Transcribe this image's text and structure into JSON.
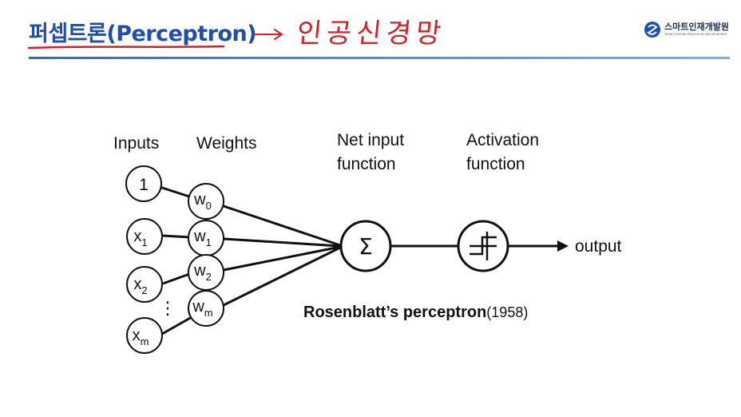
{
  "header": {
    "title": "퍼셉트론(Perceptron)",
    "annotation_arrow": "→",
    "annotation_text": "인공신경망"
  },
  "logo": {
    "name": "스마트인재개발원",
    "subtitle": "Smart Human Resources Development"
  },
  "diagram": {
    "labels": {
      "inputs": "Inputs",
      "weights": "Weights",
      "net_input_line1": "Net input",
      "net_input_line2": "function",
      "activation_line1": "Activation",
      "activation_line2": "function",
      "output": "output",
      "dots": "⋮",
      "sum_symbol": "Σ"
    },
    "inputs": [
      {
        "base": "1",
        "sub": ""
      },
      {
        "base": "x",
        "sub": "1"
      },
      {
        "base": "x",
        "sub": "2"
      },
      {
        "base": "x",
        "sub": "m"
      }
    ],
    "weights": [
      {
        "base": "w",
        "sub": "0"
      },
      {
        "base": "w",
        "sub": "1"
      },
      {
        "base": "w",
        "sub": "2"
      },
      {
        "base": "w",
        "sub": "m"
      }
    ],
    "caption": {
      "bold": "Rosenblatt’s perceptron",
      "year": "(1958)"
    }
  },
  "colors": {
    "title": "#1f4fa8",
    "handwriting": "#d61e2a",
    "rule": "#2a6fc0",
    "diagram": "#111111"
  }
}
